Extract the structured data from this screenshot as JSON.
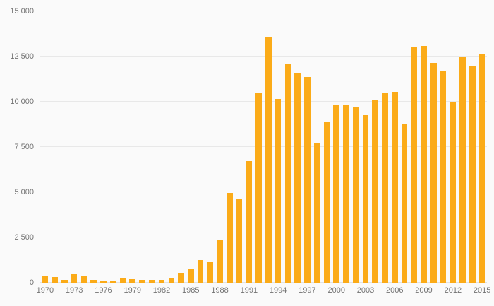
{
  "chart_data": {
    "type": "bar",
    "title": "",
    "xlabel": "",
    "ylabel": "",
    "categories": [
      "1970",
      "1971",
      "1972",
      "1973",
      "1974",
      "1975",
      "1976",
      "1977",
      "1978",
      "1979",
      "1980",
      "1981",
      "1982",
      "1983",
      "1984",
      "1985",
      "1986",
      "1987",
      "1988",
      "1989",
      "1990",
      "1991",
      "1992",
      "1993",
      "1994",
      "1995",
      "1996",
      "1997",
      "1998",
      "1999",
      "2000",
      "2001",
      "2002",
      "2003",
      "2004",
      "2005",
      "2006",
      "2007",
      "2008",
      "2009",
      "2010",
      "2011",
      "2012",
      "2013",
      "2014",
      "2015"
    ],
    "values": [
      350,
      300,
      150,
      450,
      400,
      150,
      100,
      60,
      250,
      200,
      170,
      150,
      170,
      250,
      500,
      800,
      1250,
      1150,
      2400,
      4950,
      4600,
      6700,
      10450,
      13600,
      10150,
      12100,
      11550,
      11350,
      7700,
      8850,
      9850,
      9800,
      9700,
      9250,
      10100,
      10450,
      10550,
      8800,
      13050,
      13100,
      12150,
      11700,
      10000,
      12500,
      12000,
      12650
    ],
    "ylim": [
      0,
      15000
    ],
    "y_ticks": [
      0,
      2500,
      5000,
      7500,
      10000,
      12500,
      15000
    ],
    "y_tick_labels": [
      "0",
      "2 500",
      "5 000",
      "7 500",
      "10 000",
      "12 500",
      "15 000"
    ],
    "x_tick_labels": [
      "1970",
      "1973",
      "1976",
      "1979",
      "1982",
      "1985",
      "1988",
      "1991",
      "1994",
      "1997",
      "2000",
      "2003",
      "2006",
      "2009",
      "2012",
      "2015"
    ],
    "grid": true,
    "legend": false,
    "bar_color": "#fbab18",
    "background_color": "#fafafa",
    "gridline_color": "#e8e8e8",
    "baseline_color": "#e2e2e2",
    "label_color": "#737373"
  }
}
